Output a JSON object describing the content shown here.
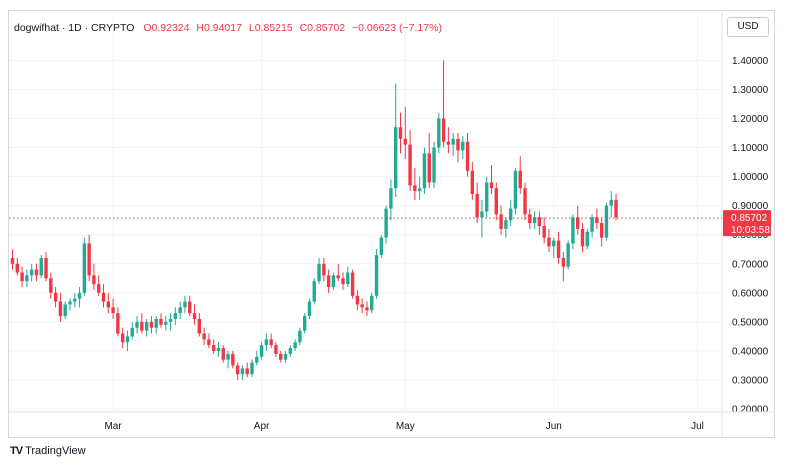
{
  "legend": {
    "symbol": "dogwifhat · 1D · CRYPTO",
    "open": "O0.92324",
    "high": "H0.94017",
    "low": "L0.85215",
    "close": "C0.85702",
    "change": "−0.06623 (−7.17%)"
  },
  "currency_button": "USD",
  "price_tag": {
    "price": "0.85702",
    "countdown": "10:03:58"
  },
  "branding": {
    "logo": "TV",
    "name": "TradingView"
  },
  "colors": {
    "up": "#22ab94",
    "down": "#f23645",
    "grid": "#f0f3fa",
    "text": "#131722"
  },
  "chart_data": {
    "type": "candlestick",
    "timeframe": "1D",
    "y_ticks": [
      "1.40000",
      "1.30000",
      "1.20000",
      "1.10000",
      "1.00000",
      "0.90000",
      "0.80000",
      "0.70000",
      "0.60000",
      "0.50000",
      "0.40000",
      "0.30000",
      "0.20000"
    ],
    "x_ticks": [
      {
        "label": "Mar",
        "index": 21
      },
      {
        "label": "Apr",
        "index": 52
      },
      {
        "label": "May",
        "index": 82
      },
      {
        "label": "Jun",
        "index": 113
      },
      {
        "label": "Jul",
        "index": 143
      }
    ],
    "ylim": [
      0.19,
      1.47
    ],
    "last_price": 0.85702,
    "candles": [
      [
        0.72,
        0.75,
        0.68,
        0.7
      ],
      [
        0.7,
        0.72,
        0.66,
        0.67
      ],
      [
        0.67,
        0.69,
        0.62,
        0.64
      ],
      [
        0.64,
        0.68,
        0.62,
        0.66
      ],
      [
        0.66,
        0.7,
        0.64,
        0.68
      ],
      [
        0.68,
        0.7,
        0.64,
        0.66
      ],
      [
        0.66,
        0.73,
        0.65,
        0.72
      ],
      [
        0.72,
        0.74,
        0.64,
        0.65
      ],
      [
        0.65,
        0.67,
        0.58,
        0.6
      ],
      [
        0.6,
        0.62,
        0.55,
        0.57
      ],
      [
        0.57,
        0.6,
        0.5,
        0.52
      ],
      [
        0.52,
        0.57,
        0.51,
        0.56
      ],
      [
        0.56,
        0.58,
        0.54,
        0.57
      ],
      [
        0.57,
        0.6,
        0.55,
        0.58
      ],
      [
        0.58,
        0.62,
        0.55,
        0.6
      ],
      [
        0.6,
        0.79,
        0.59,
        0.77
      ],
      [
        0.77,
        0.8,
        0.64,
        0.66
      ],
      [
        0.66,
        0.7,
        0.61,
        0.63
      ],
      [
        0.63,
        0.66,
        0.59,
        0.6
      ],
      [
        0.6,
        0.63,
        0.55,
        0.57
      ],
      [
        0.57,
        0.6,
        0.53,
        0.55
      ],
      [
        0.55,
        0.58,
        0.51,
        0.53
      ],
      [
        0.53,
        0.55,
        0.45,
        0.46
      ],
      [
        0.46,
        0.48,
        0.41,
        0.43
      ],
      [
        0.43,
        0.47,
        0.4,
        0.45
      ],
      [
        0.45,
        0.5,
        0.44,
        0.48
      ],
      [
        0.48,
        0.52,
        0.46,
        0.5
      ],
      [
        0.5,
        0.53,
        0.46,
        0.47
      ],
      [
        0.47,
        0.51,
        0.45,
        0.5
      ],
      [
        0.5,
        0.52,
        0.46,
        0.48
      ],
      [
        0.48,
        0.52,
        0.46,
        0.51
      ],
      [
        0.51,
        0.53,
        0.48,
        0.49
      ],
      [
        0.49,
        0.52,
        0.47,
        0.5
      ],
      [
        0.5,
        0.53,
        0.47,
        0.51
      ],
      [
        0.51,
        0.55,
        0.49,
        0.53
      ],
      [
        0.53,
        0.57,
        0.51,
        0.55
      ],
      [
        0.55,
        0.59,
        0.53,
        0.57
      ],
      [
        0.57,
        0.59,
        0.52,
        0.53
      ],
      [
        0.53,
        0.56,
        0.49,
        0.51
      ],
      [
        0.51,
        0.53,
        0.45,
        0.46
      ],
      [
        0.46,
        0.48,
        0.42,
        0.44
      ],
      [
        0.44,
        0.46,
        0.41,
        0.42
      ],
      [
        0.42,
        0.44,
        0.39,
        0.4
      ],
      [
        0.4,
        0.43,
        0.38,
        0.41
      ],
      [
        0.41,
        0.42,
        0.36,
        0.37
      ],
      [
        0.37,
        0.4,
        0.34,
        0.39
      ],
      [
        0.39,
        0.4,
        0.34,
        0.35
      ],
      [
        0.35,
        0.36,
        0.3,
        0.32
      ],
      [
        0.32,
        0.35,
        0.3,
        0.34
      ],
      [
        0.34,
        0.36,
        0.31,
        0.32
      ],
      [
        0.32,
        0.37,
        0.31,
        0.36
      ],
      [
        0.36,
        0.4,
        0.35,
        0.38
      ],
      [
        0.38,
        0.43,
        0.37,
        0.42
      ],
      [
        0.42,
        0.46,
        0.4,
        0.44
      ],
      [
        0.44,
        0.46,
        0.41,
        0.42
      ],
      [
        0.42,
        0.43,
        0.38,
        0.39
      ],
      [
        0.39,
        0.4,
        0.36,
        0.37
      ],
      [
        0.37,
        0.4,
        0.36,
        0.39
      ],
      [
        0.39,
        0.42,
        0.38,
        0.41
      ],
      [
        0.41,
        0.44,
        0.4,
        0.43
      ],
      [
        0.43,
        0.48,
        0.42,
        0.47
      ],
      [
        0.47,
        0.53,
        0.46,
        0.52
      ],
      [
        0.52,
        0.58,
        0.51,
        0.57
      ],
      [
        0.57,
        0.65,
        0.56,
        0.64
      ],
      [
        0.64,
        0.72,
        0.63,
        0.7
      ],
      [
        0.7,
        0.72,
        0.64,
        0.66
      ],
      [
        0.66,
        0.68,
        0.6,
        0.62
      ],
      [
        0.62,
        0.67,
        0.61,
        0.66
      ],
      [
        0.66,
        0.7,
        0.64,
        0.65
      ],
      [
        0.65,
        0.67,
        0.61,
        0.63
      ],
      [
        0.63,
        0.69,
        0.62,
        0.67
      ],
      [
        0.67,
        0.68,
        0.58,
        0.59
      ],
      [
        0.59,
        0.61,
        0.54,
        0.56
      ],
      [
        0.56,
        0.58,
        0.53,
        0.55
      ],
      [
        0.55,
        0.57,
        0.52,
        0.54
      ],
      [
        0.54,
        0.6,
        0.53,
        0.59
      ],
      [
        0.59,
        0.75,
        0.58,
        0.73
      ],
      [
        0.73,
        0.8,
        0.72,
        0.79
      ],
      [
        0.79,
        0.9,
        0.77,
        0.89
      ],
      [
        0.89,
        0.99,
        0.85,
        0.96
      ],
      [
        0.96,
        1.32,
        0.93,
        1.17
      ],
      [
        1.17,
        1.22,
        1.08,
        1.13
      ],
      [
        1.13,
        1.24,
        1.06,
        1.11
      ],
      [
        1.11,
        1.16,
        0.95,
        0.97
      ],
      [
        0.97,
        1.03,
        0.92,
        0.95
      ],
      [
        0.95,
        1.0,
        0.92,
        0.96
      ],
      [
        0.96,
        1.1,
        0.94,
        1.08
      ],
      [
        1.08,
        1.15,
        0.96,
        0.98
      ],
      [
        0.98,
        1.12,
        0.96,
        1.1
      ],
      [
        1.1,
        1.22,
        1.08,
        1.2
      ],
      [
        1.2,
        1.4,
        1.1,
        1.12
      ],
      [
        1.12,
        1.17,
        1.08,
        1.11
      ],
      [
        1.11,
        1.15,
        1.07,
        1.13
      ],
      [
        1.13,
        1.15,
        1.05,
        1.09
      ],
      [
        1.09,
        1.14,
        1.06,
        1.12
      ],
      [
        1.12,
        1.15,
        1.0,
        1.02
      ],
      [
        1.02,
        1.05,
        0.92,
        0.94
      ],
      [
        0.94,
        0.98,
        0.84,
        0.86
      ],
      [
        0.86,
        0.92,
        0.79,
        0.88
      ],
      [
        0.88,
        1.0,
        0.86,
        0.98
      ],
      [
        0.98,
        1.04,
        0.94,
        0.96
      ],
      [
        0.96,
        0.98,
        0.85,
        0.87
      ],
      [
        0.87,
        0.9,
        0.8,
        0.82
      ],
      [
        0.82,
        0.86,
        0.79,
        0.85
      ],
      [
        0.85,
        0.92,
        0.83,
        0.89
      ],
      [
        0.89,
        1.03,
        0.87,
        1.02
      ],
      [
        1.02,
        1.07,
        0.94,
        0.96
      ],
      [
        0.96,
        0.98,
        0.85,
        0.87
      ],
      [
        0.87,
        0.89,
        0.82,
        0.84
      ],
      [
        0.84,
        0.88,
        0.82,
        0.86
      ],
      [
        0.86,
        0.88,
        0.8,
        0.83
      ],
      [
        0.83,
        0.86,
        0.77,
        0.79
      ],
      [
        0.79,
        0.82,
        0.74,
        0.76
      ],
      [
        0.76,
        0.79,
        0.72,
        0.78
      ],
      [
        0.78,
        0.81,
        0.7,
        0.72
      ],
      [
        0.72,
        0.74,
        0.64,
        0.69
      ],
      [
        0.69,
        0.78,
        0.68,
        0.77
      ],
      [
        0.77,
        0.87,
        0.75,
        0.86
      ],
      [
        0.86,
        0.9,
        0.8,
        0.82
      ],
      [
        0.82,
        0.84,
        0.74,
        0.76
      ],
      [
        0.76,
        0.82,
        0.75,
        0.81
      ],
      [
        0.81,
        0.87,
        0.79,
        0.86
      ],
      [
        0.86,
        0.89,
        0.82,
        0.84
      ],
      [
        0.84,
        0.86,
        0.76,
        0.79
      ],
      [
        0.79,
        0.91,
        0.78,
        0.9
      ],
      [
        0.9,
        0.95,
        0.86,
        0.92
      ],
      [
        0.92,
        0.94,
        0.85,
        0.86
      ]
    ]
  }
}
